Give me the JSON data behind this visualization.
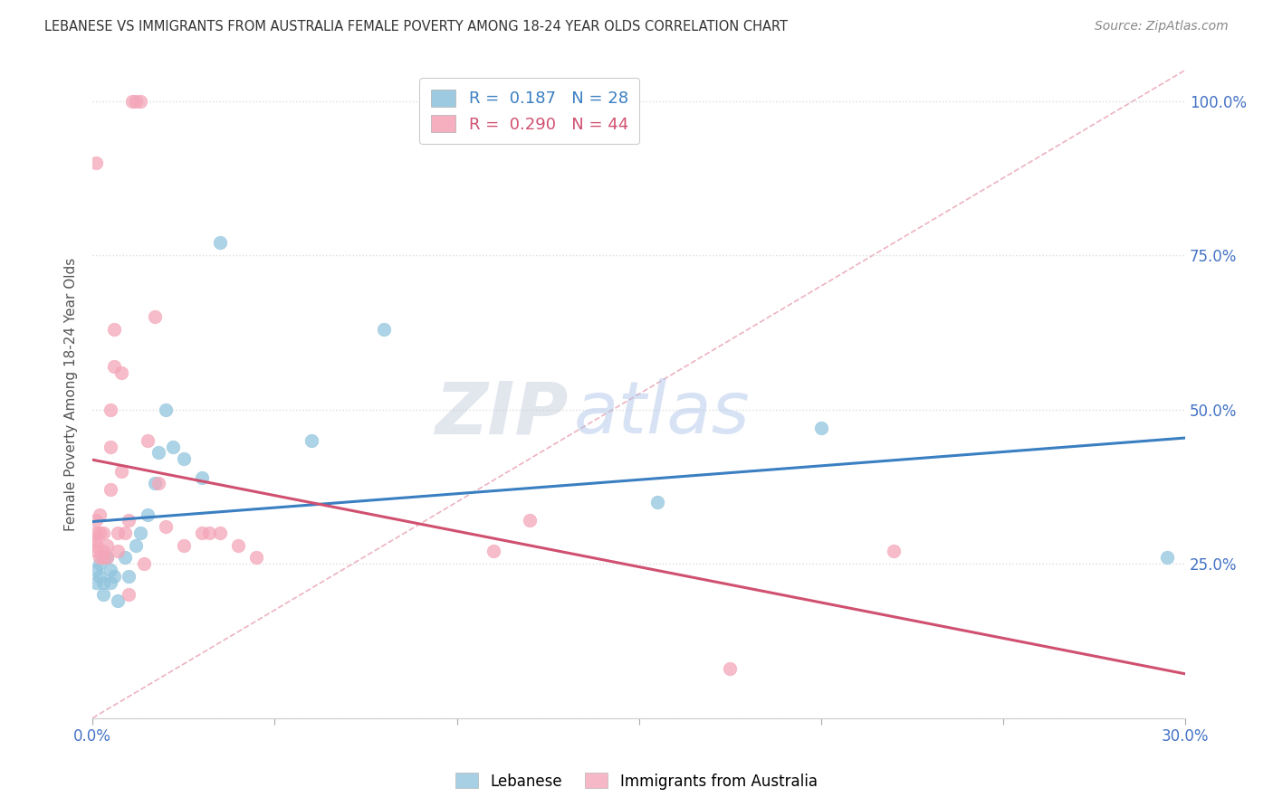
{
  "title": "LEBANESE VS IMMIGRANTS FROM AUSTRALIA FEMALE POVERTY AMONG 18-24 YEAR OLDS CORRELATION CHART",
  "source": "Source: ZipAtlas.com",
  "ylabel": "Female Poverty Among 18-24 Year Olds",
  "xlim": [
    0.0,
    0.3
  ],
  "ylim": [
    0.0,
    1.05
  ],
  "yticks": [
    0.0,
    0.25,
    0.5,
    0.75,
    1.0
  ],
  "xticks": [
    0.0,
    0.05,
    0.1,
    0.15,
    0.2,
    0.25,
    0.3
  ],
  "blue_color": "#92c5de",
  "pink_color": "#f4a6b8",
  "blue_line_color": "#3a7fc1",
  "pink_line_color": "#d05070",
  "diag_color": "#e0b0b8",
  "legend_blue_label": "Lebanese",
  "legend_pink_label": "Immigrants from Australia",
  "R_blue": 0.187,
  "N_blue": 28,
  "R_pink": 0.29,
  "N_pink": 44,
  "blue_x": [
    0.001,
    0.001,
    0.002,
    0.002,
    0.003,
    0.003,
    0.004,
    0.005,
    0.005,
    0.006,
    0.007,
    0.009,
    0.01,
    0.012,
    0.013,
    0.015,
    0.017,
    0.018,
    0.02,
    0.022,
    0.025,
    0.03,
    0.035,
    0.06,
    0.08,
    0.155,
    0.2,
    0.295
  ],
  "blue_y": [
    0.22,
    0.24,
    0.23,
    0.25,
    0.22,
    0.2,
    0.26,
    0.24,
    0.22,
    0.23,
    0.19,
    0.26,
    0.23,
    0.28,
    0.3,
    0.33,
    0.38,
    0.43,
    0.5,
    0.44,
    0.42,
    0.39,
    0.77,
    0.45,
    0.63,
    0.35,
    0.47,
    0.26
  ],
  "pink_x": [
    0.001,
    0.001,
    0.001,
    0.001,
    0.001,
    0.001,
    0.002,
    0.002,
    0.002,
    0.003,
    0.003,
    0.003,
    0.004,
    0.004,
    0.005,
    0.005,
    0.005,
    0.006,
    0.006,
    0.007,
    0.007,
    0.008,
    0.008,
    0.009,
    0.01,
    0.01,
    0.011,
    0.012,
    0.013,
    0.014,
    0.015,
    0.017,
    0.018,
    0.02,
    0.025,
    0.03,
    0.032,
    0.035,
    0.04,
    0.045,
    0.11,
    0.12,
    0.175,
    0.22
  ],
  "pink_y": [
    0.28,
    0.3,
    0.29,
    0.27,
    0.32,
    0.9,
    0.26,
    0.3,
    0.33,
    0.27,
    0.26,
    0.3,
    0.26,
    0.28,
    0.37,
    0.44,
    0.5,
    0.57,
    0.63,
    0.27,
    0.3,
    0.56,
    0.4,
    0.3,
    0.2,
    0.32,
    1.0,
    1.0,
    1.0,
    0.25,
    0.45,
    0.65,
    0.38,
    0.31,
    0.28,
    0.3,
    0.3,
    0.3,
    0.28,
    0.26,
    0.27,
    0.32,
    0.08,
    0.27
  ],
  "watermark_zip": "ZIP",
  "watermark_atlas": "atlas",
  "background_color": "#ffffff",
  "grid_color": "#dddddd",
  "axis_color": "#4472c4",
  "title_color": "#333333",
  "source_color": "#888888",
  "ylabel_color": "#555555"
}
